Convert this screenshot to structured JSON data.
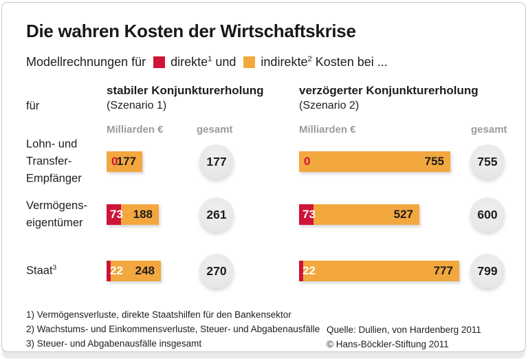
{
  "title": "Die wahren Kosten der Wirtschaftskrise",
  "legend": {
    "prefix": "Modellrechnungen für",
    "direct": {
      "label": "direkte",
      "sup": "1"
    },
    "conjunction": "und",
    "indirect": {
      "label": "indirekte",
      "sup": "2"
    },
    "suffix": "Kosten bei ..."
  },
  "row_axis_label": "für",
  "scenarios": [
    {
      "title": "stabiler Konjunkturerholung",
      "subtitle": "(Szenario 1)",
      "unit_label": "Milliarden €",
      "total_label": "gesamt"
    },
    {
      "title": "verzögerter Konjunkturerholung",
      "subtitle": "(Szenario 2)",
      "unit_label": "Milliarden €",
      "total_label": "gesamt"
    }
  ],
  "rows": [
    {
      "label_lines": [
        "Lohn- und",
        "Transfer-",
        "Empfänger"
      ],
      "label_sup": "",
      "bars": [
        {
          "direct": 0,
          "indirect": 177,
          "total": 177
        },
        {
          "direct": 0,
          "indirect": 755,
          "total": 755
        }
      ]
    },
    {
      "label_lines": [
        "Vermögens-",
        "eigentümer"
      ],
      "label_sup": "",
      "bars": [
        {
          "direct": 73,
          "indirect": 188,
          "total": 261
        },
        {
          "direct": 73,
          "indirect": 527,
          "total": 600
        }
      ]
    },
    {
      "label_lines": [
        "Staat"
      ],
      "label_sup": "3",
      "bars": [
        {
          "direct": 22,
          "indirect": 248,
          "total": 270
        },
        {
          "direct": 22,
          "indirect": 777,
          "total": 799
        }
      ]
    }
  ],
  "footnotes": [
    "1) Vermögensverluste, direkte Staatshilfen für den Bankensektor",
    "2) Wachstums- und Einkommensverluste, Steuer- und Abgabenausfälle",
    "3) Steuer- und Abgabenausfälle insgesamt"
  ],
  "source_lines": [
    "Quelle: Dullien, von Hardenberg 2011",
    "© Hans-Böckler-Stiftung 2011"
  ],
  "colors": {
    "direct": "#cc1536",
    "indirect": "#f3a73f",
    "muted_header": "#9b9b9b",
    "total_circle": "#e9e9e9",
    "text": "#1d1d1b"
  },
  "chart_data": {
    "type": "bar",
    "orientation": "horizontal",
    "stacked": true,
    "unit": "Milliarden €",
    "title": "Die wahren Kosten der Wirtschaftskrise",
    "subtitle": "Modellrechnungen für direkte und indirekte Kosten",
    "categories": [
      "Lohn- und Transfer-Empfänger",
      "Vermögenseigentümer",
      "Staat"
    ],
    "groups": [
      "stabiler Konjunkturerholung (Szenario 1)",
      "verzögerter Konjunkturerholung (Szenario 2)"
    ],
    "series": [
      {
        "name": "direkte Kosten (Szenario 1)",
        "color": "#cc1536",
        "values": [
          0,
          73,
          22
        ]
      },
      {
        "name": "indirekte Kosten (Szenario 1)",
        "color": "#f3a73f",
        "values": [
          177,
          188,
          248
        ]
      },
      {
        "name": "direkte Kosten (Szenario 2)",
        "color": "#cc1536",
        "values": [
          0,
          73,
          22
        ]
      },
      {
        "name": "indirekte Kosten (Szenario 2)",
        "color": "#f3a73f",
        "values": [
          755,
          527,
          777
        ]
      }
    ],
    "totals": {
      "szenario_1": [
        177,
        261,
        270
      ],
      "szenario_2": [
        755,
        600,
        799
      ]
    },
    "legend_position": "top",
    "grid": false
  }
}
